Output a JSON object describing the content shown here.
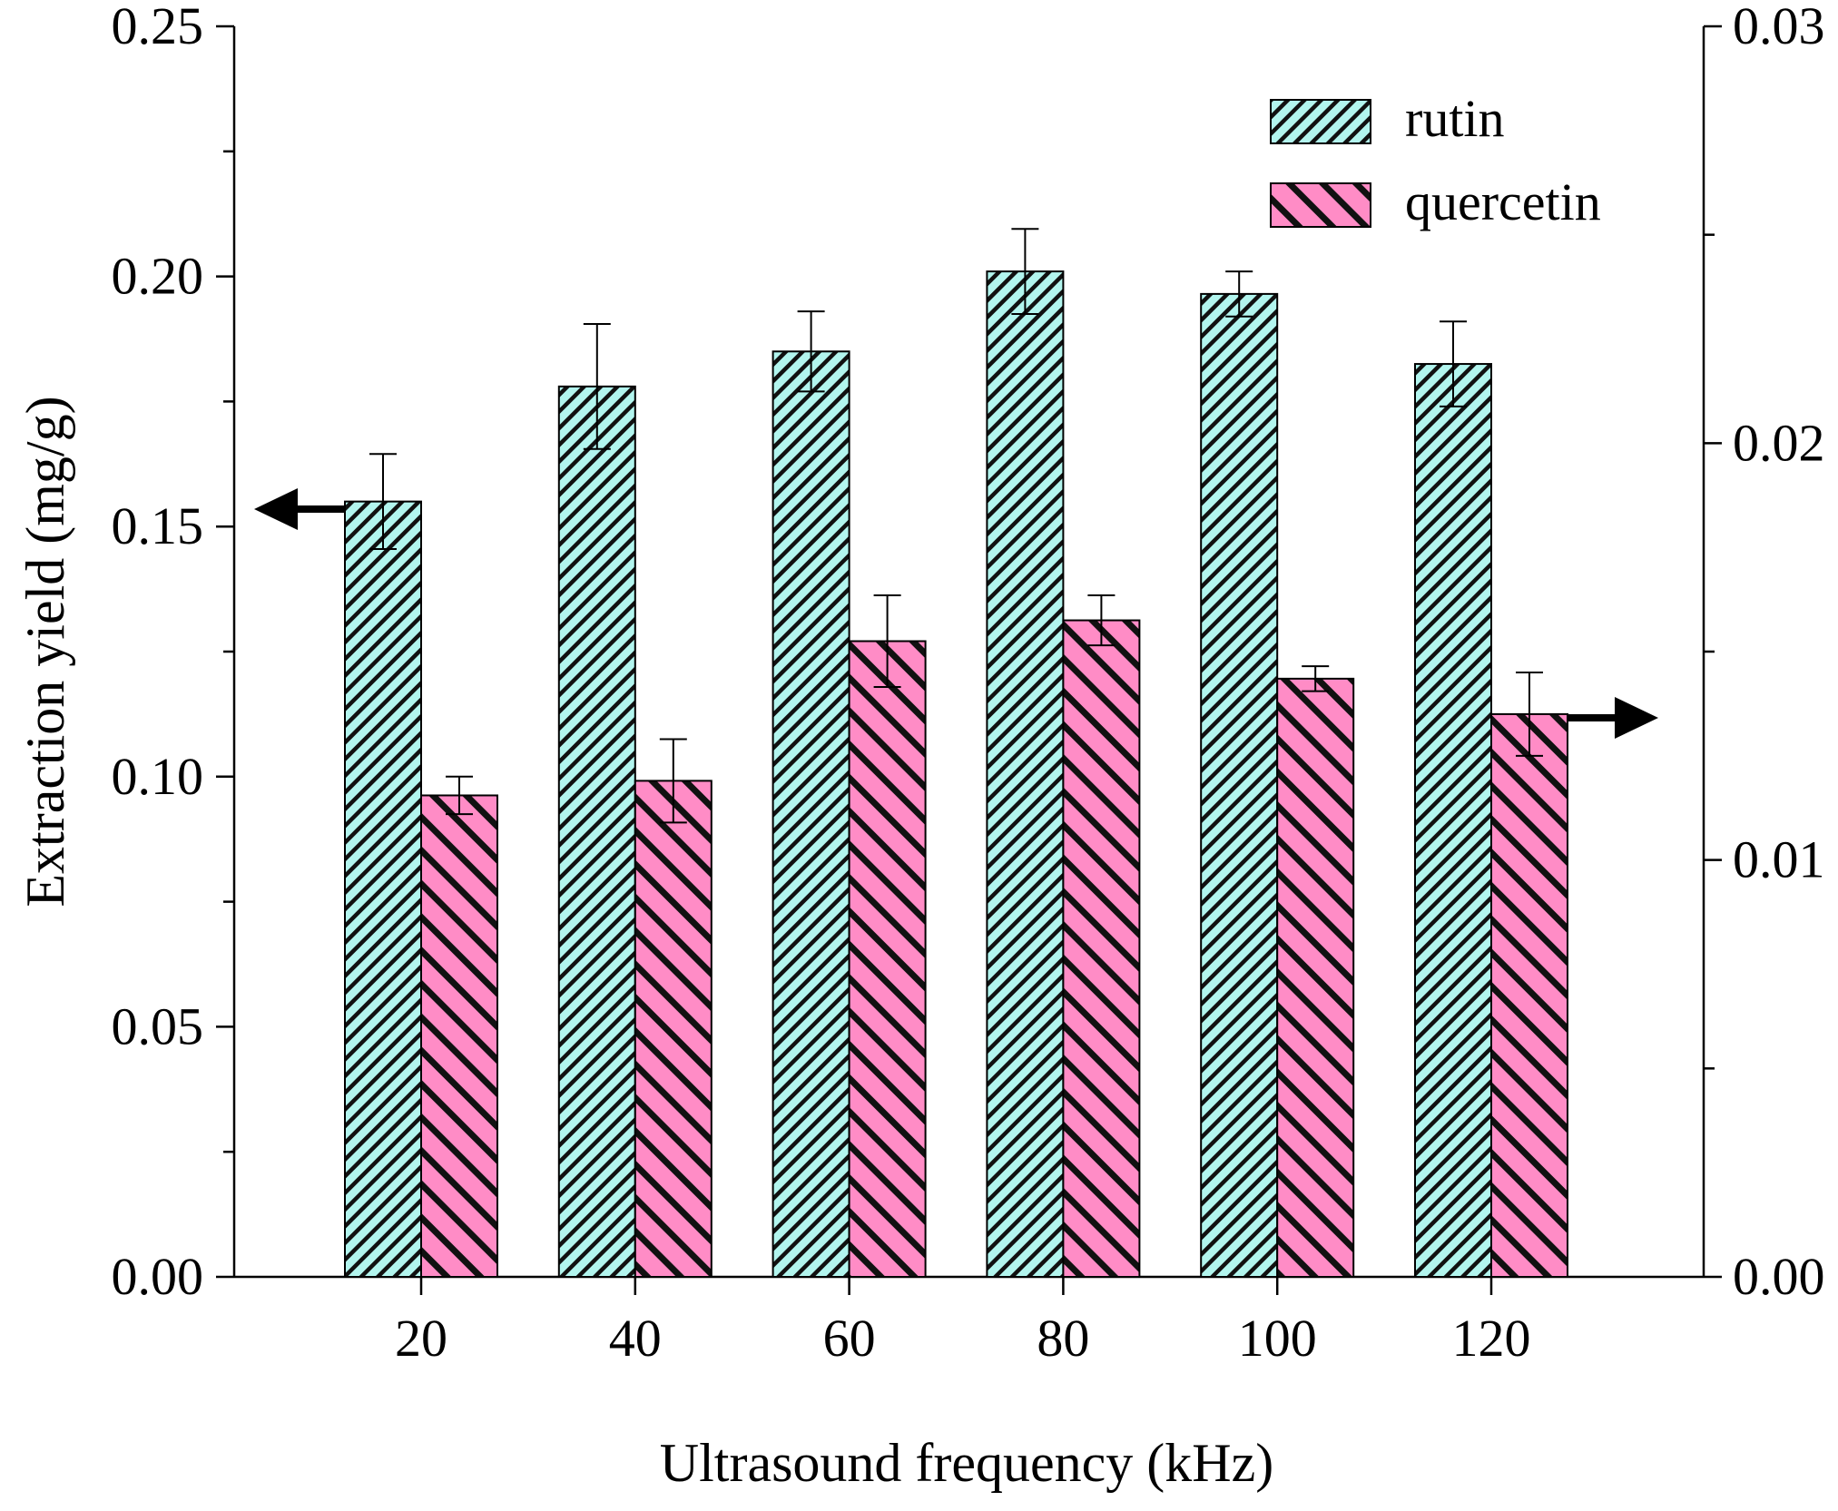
{
  "chart_data": {
    "type": "bar",
    "title": "",
    "xlabel": "Ultrasound frequency (kHz)",
    "ylabel": "Extraction yield (mg/g)",
    "categories": [
      "20",
      "40",
      "60",
      "80",
      "100",
      "120"
    ],
    "series": [
      {
        "name": "rutin",
        "axis": "left",
        "values": [
          0.155,
          0.178,
          0.185,
          0.201,
          0.1965,
          0.1825
        ],
        "errors": [
          0.0095,
          0.0125,
          0.008,
          0.0085,
          0.0045,
          0.0085
        ],
        "color": "#b2f5ee",
        "hatch": "narrow diagonal lines"
      },
      {
        "name": "quercetin",
        "axis": "right",
        "values": [
          0.01155,
          0.0119,
          0.01525,
          0.01575,
          0.01435,
          0.0135
        ],
        "errors": [
          0.00045,
          0.001,
          0.0011,
          0.0006,
          0.0003,
          0.001
        ],
        "color": "#ff8cc6",
        "hatch": "wide diagonal lines"
      }
    ],
    "y_left": {
      "ylim": [
        0,
        0.25
      ],
      "major_ticks": [
        0.0,
        0.05,
        0.1,
        0.15,
        0.2,
        0.25
      ],
      "tick_labels": [
        "0.00",
        "0.05",
        "0.10",
        "0.15",
        "0.20",
        "0.25"
      ],
      "minor_step": 0.025
    },
    "y_right": {
      "ylim": [
        0,
        0.03
      ],
      "major_ticks": [
        0.0,
        0.01,
        0.02,
        0.03
      ],
      "tick_labels": [
        "0.00",
        "0.01",
        "0.02",
        "0.03"
      ],
      "minor_step": 0.005
    },
    "legend": {
      "position": "top-right",
      "entries": [
        "rutin",
        "quercetin"
      ]
    },
    "annotations": [
      {
        "type": "arrow",
        "direction": "left",
        "meaning": "rutin uses left axis"
      },
      {
        "type": "arrow",
        "direction": "right",
        "meaning": "quercetin uses right axis"
      }
    ],
    "grid": false
  }
}
